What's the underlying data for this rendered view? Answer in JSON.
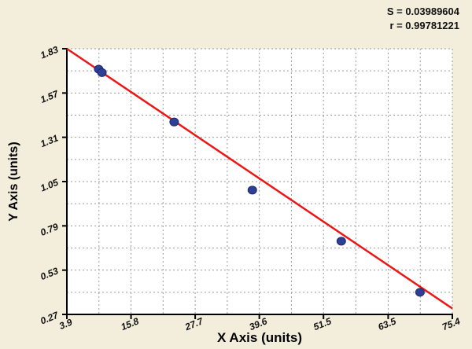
{
  "annotations": {
    "s_label": "S = 0.03989604",
    "r_label": "r = 0.99781221"
  },
  "chart_data": {
    "type": "scatter",
    "title": "",
    "xlabel": "X Axis (units)",
    "ylabel": "Y Axis (units)",
    "xlim": [
      3.9,
      75.4
    ],
    "ylim": [
      0.27,
      1.83
    ],
    "x_ticks": [
      "3.9",
      "15.8",
      "27.7",
      "39.6",
      "51.5",
      "63.5",
      "75.4"
    ],
    "y_ticks": [
      "0.27",
      "0.53",
      "0.79",
      "1.05",
      "1.31",
      "1.57",
      "1.83"
    ],
    "grid": "dashed, major ticks plus midpoints",
    "legend_position": "none",
    "points": [
      {
        "x": 9.8,
        "y": 1.71
      },
      {
        "x": 10.4,
        "y": 1.69
      },
      {
        "x": 23.8,
        "y": 1.4
      },
      {
        "x": 38.3,
        "y": 1.0
      },
      {
        "x": 54.8,
        "y": 0.7
      },
      {
        "x": 69.4,
        "y": 0.4
      }
    ],
    "fit_line": {
      "x1": 3.9,
      "y1": 1.83,
      "x2": 75.4,
      "y2": 0.305
    },
    "colors": {
      "background": "#f3eedb",
      "plot_background": "#ffffff",
      "grid": "#9a9a9a",
      "axis": "#000000",
      "point_fill": "#2e3f96",
      "point_stroke": "#1c2a6b",
      "line": "#ee1515",
      "text": "#111111"
    }
  }
}
